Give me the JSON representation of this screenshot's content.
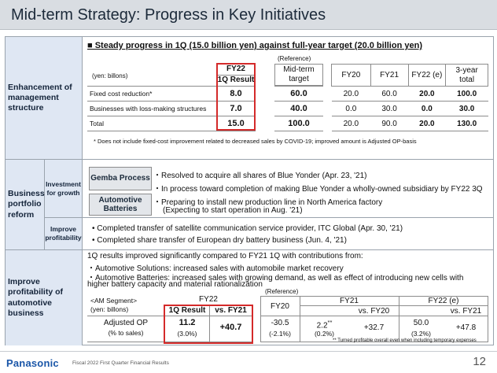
{
  "title": "Mid-term Strategy: Progress in Key Initiatives",
  "sections": {
    "enhancement": {
      "label": "Enhancement of management structure",
      "headline": "■ Steady progress in 1Q (15.0 billion yen) against full-year target (20.0 billion yen)",
      "unit": "(yen: billons)",
      "fy22_header": "FY22",
      "result_header": "1Q Result",
      "reference": "(Reference)",
      "midterm_header": "Mid-term target",
      "cols": [
        "FY20",
        "FY21",
        "FY22 (e)",
        "3-year total"
      ],
      "rows": [
        {
          "label": "Fixed cost reduction*",
          "result": "8.0",
          "target": "60.0",
          "values": [
            "20.0",
            "60.0",
            "20.0",
            "100.0"
          ]
        },
        {
          "label": "Businesses with loss-making structures",
          "result": "7.0",
          "target": "40.0",
          "values": [
            "0.0",
            "30.0",
            "0.0",
            "30.0"
          ]
        },
        {
          "label": "Total",
          "result": "15.0",
          "target": "100.0",
          "values": [
            "20.0",
            "90.0",
            "20.0",
            "130.0"
          ]
        }
      ],
      "note": "* Does not include fixed-cost improvement related to decreased sales by COVID-19; improved amount is Adjusted OP-basis"
    },
    "portfolio": {
      "label": "Business portfolio reform",
      "sub_growth": "Investment for growth",
      "sub_profit": "Improve profitability",
      "gemba_tag": "Gemba Process",
      "gemba_lines": [
        "・Resolved to acquire all shares of Blue Yonder (Apr. 23, '21)",
        "・In process toward completion of making Blue Yonder a wholly-owned subsidiary by FY22 3Q"
      ],
      "auto_tag": "Automotive Batteries",
      "auto_lines": [
        "・Preparing to install new production line in North America factory",
        "(Expecting to start operation in Aug. '21)"
      ],
      "profit_lines": [
        "• Completed transfer of satellite communication service provider, ITC Global (Apr. 30, '21)",
        "• Completed share transfer of European dry battery business (Jun. 4, '21)"
      ]
    },
    "automotive": {
      "label": "Improve profitability of automotive business",
      "lines": [
        "1Q results improved significantly compared to FY21 1Q with contributions from:",
        "・Automotive Solutions: increased sales with automobile market recovery",
        "・Automotive Batteries: increased sales with growing demand, as well as effect of introducing new cells with",
        "higher battery capacity and material rationalization"
      ],
      "segment": "<AM Segment>",
      "unit": "(yen: billons)",
      "fy22": "FY22",
      "result_header": "1Q Result",
      "vs_fy21": "vs. FY21",
      "reference": "(Reference)",
      "fy20": "FY20",
      "fy21": "FY21",
      "vs_fy20": "vs. FY20",
      "fy22e": "FY22 (e)",
      "vs_fy21_b": "vs. FY21",
      "row_label_1": "Adjusted OP",
      "row_label_2": "(% to sales)",
      "result_val": "11.2",
      "result_pct": "(3.0%)",
      "result_vs": "+40.7",
      "fy20_val": "-30.5",
      "fy20_pct": "(-2.1%)",
      "fy21_val": "2.2",
      "fy21_mark": "**",
      "fy21_pct": "(0.2%)",
      "fy21_vs": "+32.7",
      "fy22e_val": "50.0",
      "fy22e_pct": "(3.2%)",
      "fy22e_vs": "+47.8",
      "note": "** Turned profitable overall even when including temporary expenses"
    }
  },
  "footer": {
    "logo": "Panasonic",
    "note": "Fiscal 2022 First Quarter Financial Results",
    "page": "12"
  },
  "colors": {
    "accent_red": "#d42a2a",
    "label_bg": "#dfe7f3",
    "brand_blue": "#1a56a8"
  }
}
